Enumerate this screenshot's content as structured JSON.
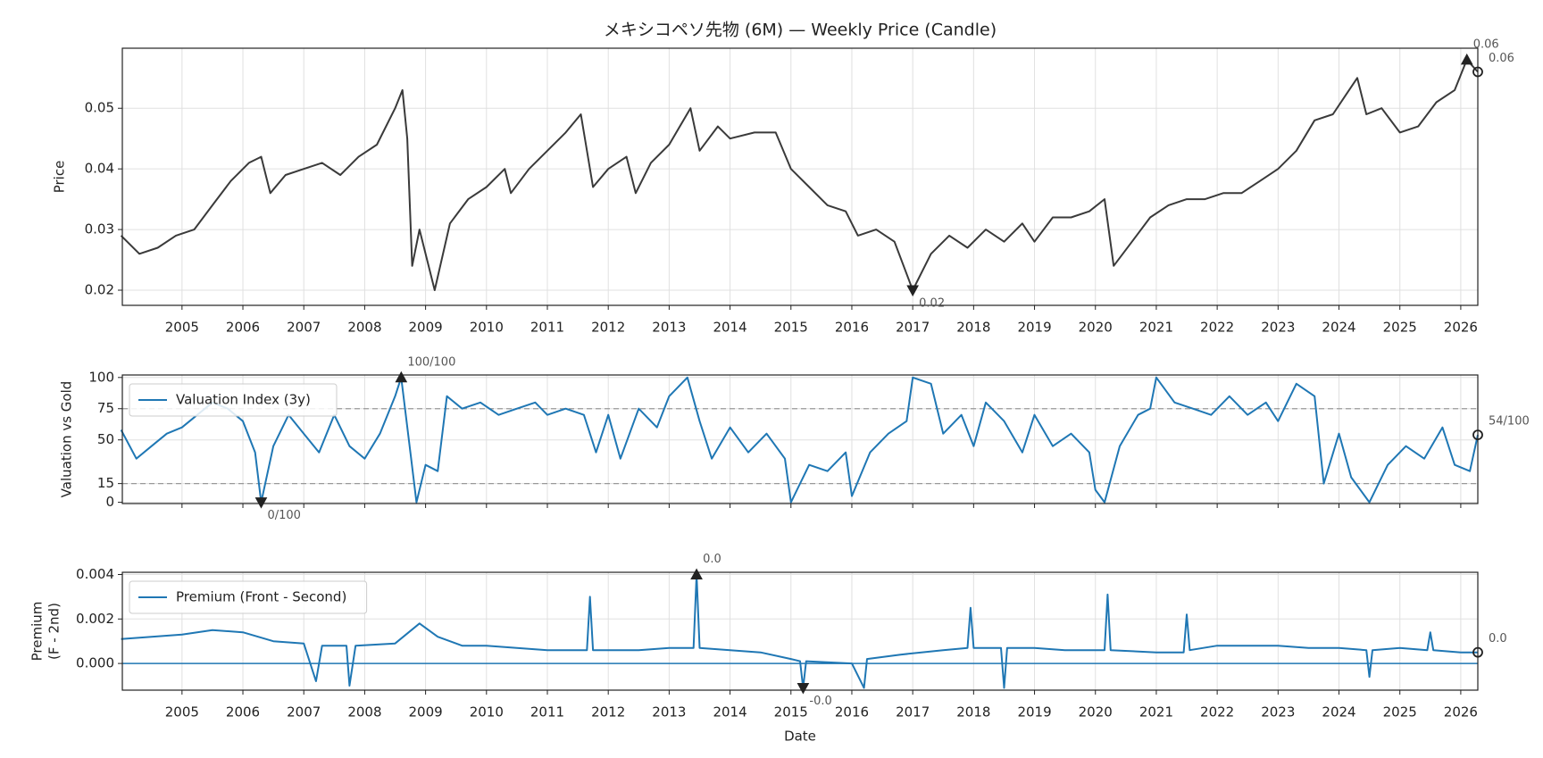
{
  "chart_data": [
    {
      "type": "line",
      "title": "メキシコペソ先物 (6M) — Weekly Price (Candle)",
      "ylabel": "Price",
      "x": [
        2004.0,
        2004.3,
        2004.6,
        2004.9,
        2005.2,
        2005.5,
        2005.8,
        2006.1,
        2006.3,
        2006.45,
        2006.7,
        2007.0,
        2007.3,
        2007.6,
        2007.9,
        2008.2,
        2008.5,
        2008.62,
        2008.7,
        2008.78,
        2008.9,
        2009.15,
        2009.4,
        2009.7,
        2010.0,
        2010.3,
        2010.4,
        2010.7,
        2011.0,
        2011.3,
        2011.55,
        2011.75,
        2012.0,
        2012.3,
        2012.45,
        2012.7,
        2013.0,
        2013.35,
        2013.5,
        2013.8,
        2014.0,
        2014.4,
        2014.75,
        2015.0,
        2015.3,
        2015.6,
        2015.9,
        2016.1,
        2016.4,
        2016.7,
        2017.0,
        2017.3,
        2017.6,
        2017.9,
        2018.2,
        2018.5,
        2018.8,
        2019.0,
        2019.3,
        2019.6,
        2019.9,
        2020.15,
        2020.3,
        2020.6,
        2020.9,
        2021.2,
        2021.5,
        2021.8,
        2022.1,
        2022.4,
        2022.7,
        2023.0,
        2023.3,
        2023.6,
        2023.9,
        2024.1,
        2024.3,
        2024.45,
        2024.7,
        2025.0,
        2025.3,
        2025.6,
        2025.9,
        2026.1,
        2026.28
      ],
      "series": [
        {
          "color": "#3a3a3a",
          "values": [
            0.029,
            0.026,
            0.027,
            0.029,
            0.03,
            0.034,
            0.038,
            0.041,
            0.042,
            0.036,
            0.039,
            0.04,
            0.041,
            0.039,
            0.042,
            0.044,
            0.05,
            0.053,
            0.045,
            0.024,
            0.03,
            0.02,
            0.031,
            0.035,
            0.037,
            0.04,
            0.036,
            0.04,
            0.043,
            0.046,
            0.049,
            0.037,
            0.04,
            0.042,
            0.036,
            0.041,
            0.044,
            0.05,
            0.043,
            0.047,
            0.045,
            0.046,
            0.046,
            0.04,
            0.037,
            0.034,
            0.033,
            0.029,
            0.03,
            0.028,
            0.02,
            0.026,
            0.029,
            0.027,
            0.03,
            0.028,
            0.031,
            0.028,
            0.032,
            0.032,
            0.033,
            0.035,
            0.024,
            0.028,
            0.032,
            0.034,
            0.035,
            0.035,
            0.036,
            0.036,
            0.038,
            0.04,
            0.043,
            0.048,
            0.049,
            0.052,
            0.055,
            0.049,
            0.05,
            0.046,
            0.047,
            0.051,
            0.053,
            0.058,
            0.056
          ]
        }
      ],
      "xlim": [
        2004.02,
        2026.28
      ],
      "xticks": [
        2005,
        2006,
        2007,
        2008,
        2009,
        2010,
        2011,
        2012,
        2013,
        2014,
        2015,
        2016,
        2017,
        2018,
        2019,
        2020,
        2021,
        2022,
        2023,
        2024,
        2025,
        2026
      ],
      "xtick_labels": true,
      "ylim": [
        0.0175,
        0.0599
      ],
      "yticks": [
        0.02,
        0.03,
        0.04,
        0.05
      ],
      "grid": true,
      "annotations": [
        {
          "label": "0.06",
          "x": 2026.1,
          "y": 0.058,
          "marker": "^"
        },
        {
          "label": "0.06",
          "x": 2026.28,
          "y": 0.056,
          "marker": "o"
        },
        {
          "label": "0.02",
          "x": 2017.0,
          "y": 0.02,
          "marker": "v"
        }
      ]
    },
    {
      "type": "line",
      "ylabel": "Valuation vs Gold",
      "x": [
        2004.0,
        2004.25,
        2004.5,
        2004.75,
        2005.0,
        2005.25,
        2005.5,
        2005.75,
        2006.0,
        2006.2,
        2006.3,
        2006.5,
        2006.75,
        2007.0,
        2007.25,
        2007.5,
        2007.75,
        2008.0,
        2008.25,
        2008.5,
        2008.6,
        2008.75,
        2008.85,
        2009.0,
        2009.2,
        2009.35,
        2009.6,
        2009.9,
        2010.2,
        2010.5,
        2010.8,
        2011.0,
        2011.3,
        2011.6,
        2011.8,
        2012.0,
        2012.2,
        2012.5,
        2012.8,
        2013.0,
        2013.3,
        2013.5,
        2013.7,
        2014.0,
        2014.3,
        2014.6,
        2014.9,
        2015.0,
        2015.3,
        2015.6,
        2015.9,
        2016.0,
        2016.3,
        2016.6,
        2016.9,
        2017.0,
        2017.3,
        2017.5,
        2017.8,
        2018.0,
        2018.2,
        2018.5,
        2018.8,
        2019.0,
        2019.3,
        2019.6,
        2019.9,
        2020.0,
        2020.15,
        2020.4,
        2020.7,
        2020.9,
        2021.0,
        2021.3,
        2021.6,
        2021.9,
        2022.2,
        2022.5,
        2022.8,
        2023.0,
        2023.3,
        2023.6,
        2023.75,
        2024.0,
        2024.2,
        2024.5,
        2024.8,
        2025.1,
        2025.4,
        2025.7,
        2025.9,
        2026.15,
        2026.28
      ],
      "series": [
        {
          "name": "Valuation Index (3y)",
          "color": "#1f77b4",
          "values": [
            58,
            35,
            45,
            55,
            60,
            70,
            80,
            75,
            65,
            40,
            0,
            45,
            70,
            55,
            40,
            70,
            45,
            35,
            55,
            85,
            100,
            40,
            0,
            30,
            25,
            85,
            75,
            80,
            70,
            75,
            80,
            70,
            75,
            70,
            40,
            70,
            35,
            75,
            60,
            85,
            100,
            65,
            35,
            60,
            40,
            55,
            35,
            0,
            30,
            25,
            40,
            5,
            40,
            55,
            65,
            100,
            95,
            55,
            70,
            45,
            80,
            65,
            40,
            70,
            45,
            55,
            40,
            10,
            0,
            45,
            70,
            75,
            100,
            80,
            75,
            70,
            85,
            70,
            80,
            65,
            95,
            85,
            15,
            55,
            20,
            0,
            30,
            45,
            35,
            60,
            30,
            25,
            54
          ]
        }
      ],
      "xlim": [
        2004.02,
        2026.28
      ],
      "xticks": [
        2005,
        2006,
        2007,
        2008,
        2009,
        2010,
        2011,
        2012,
        2013,
        2014,
        2015,
        2016,
        2017,
        2018,
        2019,
        2020,
        2021,
        2022,
        2023,
        2024,
        2025,
        2026
      ],
      "xtick_labels": false,
      "ylim": [
        -1,
        102
      ],
      "yticks": [
        0,
        15,
        50,
        75,
        100
      ],
      "grid": true,
      "legend": "upper left",
      "hlines": [
        75,
        15
      ],
      "hline_style": "dashed",
      "hline_color": "#999999",
      "annotations": [
        {
          "label": "100/100",
          "x": 2008.6,
          "y": 100,
          "marker": "^"
        },
        {
          "label": "0/100",
          "x": 2006.3,
          "y": 0,
          "marker": "v"
        },
        {
          "label": "54/100",
          "x": 2026.28,
          "y": 54,
          "marker": "o"
        }
      ]
    },
    {
      "type": "line",
      "ylabel": [
        "Premium",
        "(F - 2nd)"
      ],
      "xlabel": "Date",
      "x": [
        2004.0,
        2004.5,
        2005.0,
        2005.5,
        2006.0,
        2006.5,
        2007.0,
        2007.2,
        2007.3,
        2007.7,
        2007.75,
        2007.85,
        2008.5,
        2008.9,
        2009.2,
        2009.6,
        2010.0,
        2010.5,
        2011.0,
        2011.65,
        2011.7,
        2011.75,
        2012.5,
        2013.0,
        2013.4,
        2013.45,
        2013.5,
        2014.0,
        2014.5,
        2015.0,
        2015.15,
        2015.2,
        2015.25,
        2016.0,
        2016.2,
        2016.25,
        2016.8,
        2017.5,
        2017.9,
        2017.95,
        2018.0,
        2018.45,
        2018.5,
        2018.55,
        2019.0,
        2019.5,
        2020.0,
        2020.15,
        2020.2,
        2020.25,
        2021.0,
        2021.45,
        2021.5,
        2021.55,
        2022.0,
        2022.5,
        2023.0,
        2023.5,
        2024.0,
        2024.45,
        2024.5,
        2024.55,
        2025.0,
        2025.45,
        2025.5,
        2025.55,
        2026.0,
        2026.28
      ],
      "series": [
        {
          "name": "Premium (Front - Second)",
          "color": "#1f77b4",
          "values": [
            0.0011,
            0.0012,
            0.0013,
            0.0015,
            0.0014,
            0.001,
            0.0009,
            -0.0008,
            0.0008,
            0.0008,
            -0.001,
            0.0008,
            0.0009,
            0.0018,
            0.0012,
            0.0008,
            0.0008,
            0.0007,
            0.0006,
            0.0006,
            0.003,
            0.0006,
            0.0006,
            0.0007,
            0.0007,
            0.004,
            0.0007,
            0.0006,
            0.0005,
            0.0002,
            0.0001,
            -0.0011,
            0.0001,
            0.0,
            -0.0011,
            0.0002,
            0.0004,
            0.0006,
            0.0007,
            0.0025,
            0.0007,
            0.0007,
            -0.0011,
            0.0007,
            0.0007,
            0.0006,
            0.0006,
            0.0006,
            0.0031,
            0.0006,
            0.0005,
            0.0005,
            0.0022,
            0.0006,
            0.0008,
            0.0008,
            0.0008,
            0.0007,
            0.0007,
            0.0006,
            -0.0006,
            0.0006,
            0.0007,
            0.0006,
            0.0014,
            0.0006,
            0.0005,
            0.0005
          ]
        }
      ],
      "xlim": [
        2004.02,
        2026.28
      ],
      "xticks": [
        2005,
        2006,
        2007,
        2008,
        2009,
        2010,
        2011,
        2012,
        2013,
        2014,
        2015,
        2016,
        2017,
        2018,
        2019,
        2020,
        2021,
        2022,
        2023,
        2024,
        2025,
        2026
      ],
      "xtick_labels": true,
      "ylim": [
        -0.0012,
        0.0041
      ],
      "yticks": [
        {
          "value": 0,
          "label": "0.000"
        },
        {
          "value": 0.002,
          "label": "0.002"
        },
        {
          "value": 0.004,
          "label": "0.004"
        }
      ],
      "grid": true,
      "legend": "upper left",
      "hlines": [
        0
      ],
      "hline_style": "solid",
      "hline_color": "#1f77b4",
      "annotations": [
        {
          "label": "0.0",
          "x": 2013.45,
          "y": 0.004,
          "marker": "^"
        },
        {
          "label": "-0.0",
          "x": 2015.2,
          "y": -0.0011,
          "marker": "v"
        },
        {
          "label": "0.0",
          "x": 2026.28,
          "y": 0.0005,
          "marker": "o"
        }
      ]
    }
  ]
}
